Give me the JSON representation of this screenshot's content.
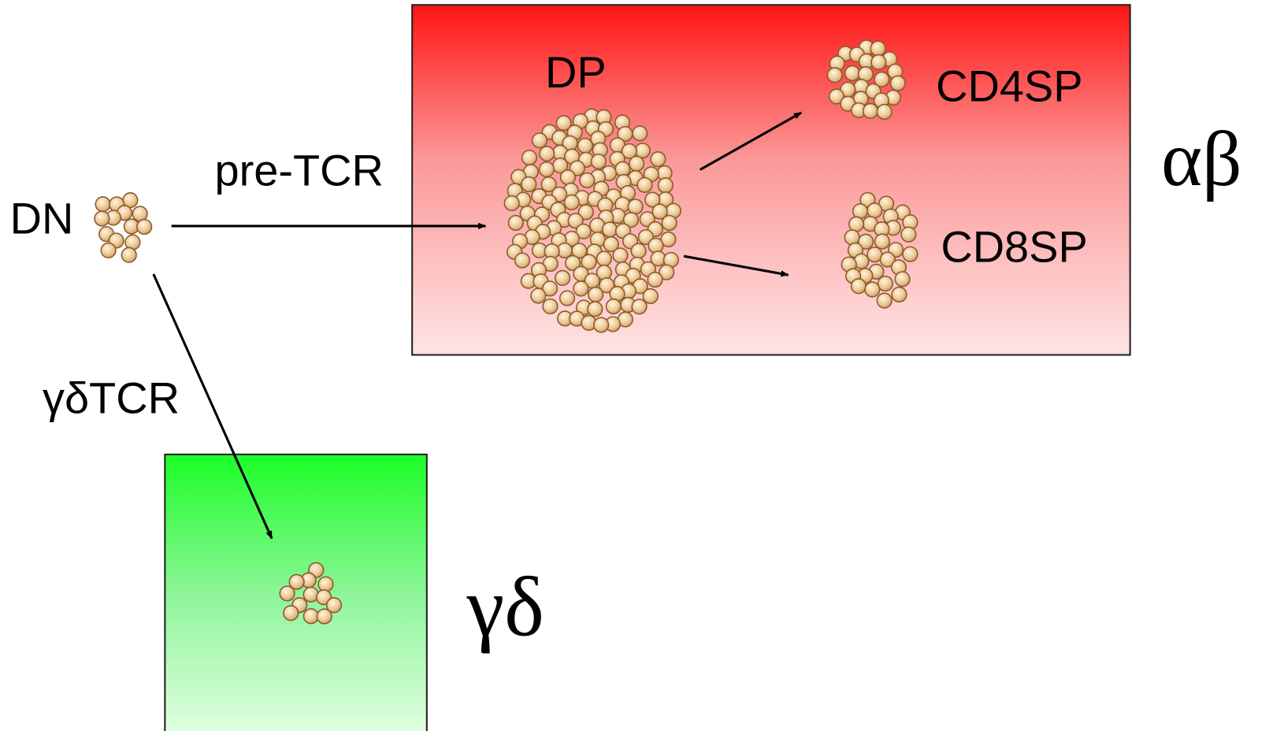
{
  "nodes": [
    {
      "label": "DN"
    },
    {
      "label": "DP"
    },
    {
      "label": "CD4SP"
    },
    {
      "label": "CD8SP"
    },
    {
      "label": "γδ"
    }
  ],
  "lineages": [
    {
      "label": "αβ"
    }
  ],
  "edges": [
    {
      "label": "pre-TCR"
    },
    {
      "label": "γδTCR"
    }
  ]
}
